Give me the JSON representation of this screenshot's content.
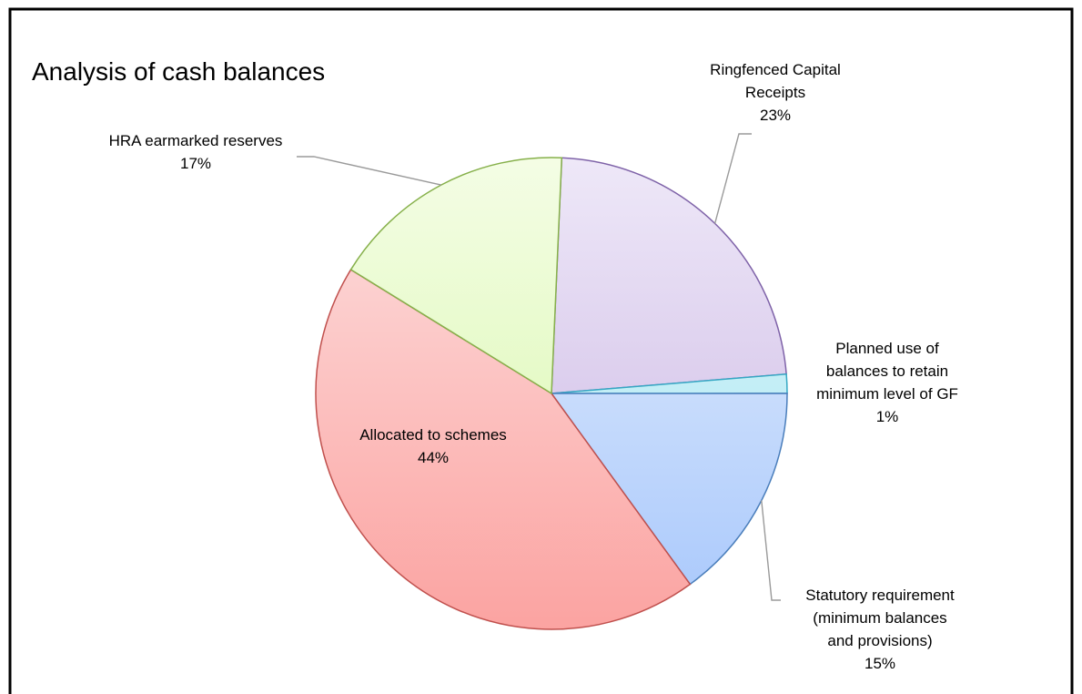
{
  "chart_data": {
    "type": "pie",
    "title": "Analysis of cash balances",
    "slices": [
      {
        "label_lines": [
          "Ringfenced Capital",
          "Receipts"
        ],
        "percent_label": "23%",
        "value": 23,
        "fill_top": "#eee8f8",
        "fill_bottom": "#c9b3e2",
        "stroke": "#7e62a8"
      },
      {
        "label_lines": [
          "Planned use of",
          "balances to retain",
          "minimum level of GF"
        ],
        "percent_label": "1%",
        "value": 1.3,
        "fill_top": "#dcf6fa",
        "fill_bottom": "#a9e6f2",
        "stroke": "#35a8c4"
      },
      {
        "label_lines": [
          "Statutory requirement",
          "(minimum balances",
          "and provisions)"
        ],
        "percent_label": "15%",
        "value": 15,
        "fill_top": "#e9f1fe",
        "fill_bottom": "#a7c7fb",
        "stroke": "#4a7ebb"
      },
      {
        "label_lines": [
          "Allocated to schemes"
        ],
        "percent_label": "44%",
        "value": 43.8,
        "fill_top": "#fde0e0",
        "fill_bottom": "#fba3a1",
        "stroke": "#c0504d"
      },
      {
        "label_lines": [
          "HRA earmarked reserves"
        ],
        "percent_label": "17%",
        "value": 16.9,
        "fill_top": "#f4fde5",
        "fill_bottom": "#d6f7a8",
        "stroke": "#86b04a"
      }
    ],
    "start_angle_deg": 2.5,
    "direction": "clockwise-from-top",
    "legend": "none",
    "data_labels": "category-and-percent"
  }
}
